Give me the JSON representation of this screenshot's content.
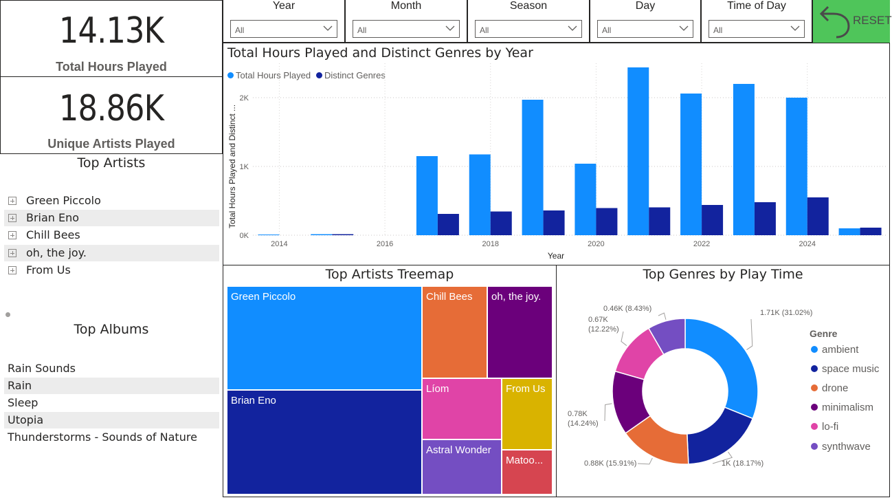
{
  "kpis": {
    "total_hours_value": "14.13K",
    "total_hours_label": "Total Hours Played",
    "unique_artists_value": "18.86K",
    "unique_artists_label": "Unique Artists Played"
  },
  "top_artists": {
    "title": "Top Artists",
    "items": [
      "Green Piccolo",
      "Brian Eno",
      "Chill Bees",
      "oh, the joy.",
      "From Us"
    ]
  },
  "top_albums": {
    "title": "Top Albums",
    "items": [
      "Rain Sounds",
      "Rain",
      "Sleep",
      "Utopia",
      "Thunderstorms - Sounds of Nature"
    ]
  },
  "slicers": [
    {
      "label": "Year",
      "value": "All"
    },
    {
      "label": "Month",
      "value": "All"
    },
    {
      "label": "Season",
      "value": "All"
    },
    {
      "label": "Day",
      "value": "All"
    },
    {
      "label": "Time of Day",
      "value": "All"
    }
  ],
  "reset_label": "RESET",
  "colors": {
    "light_blue": "#118dff",
    "dark_blue": "#12239e",
    "orange": "#e66c37",
    "purple_dark": "#6b007b",
    "pink": "#e044a7",
    "violet": "#744ec2",
    "yellow": "#d9b300",
    "red": "#d64550",
    "reset_green": "#4fc55a"
  },
  "chart_data": [
    {
      "type": "bar",
      "title": "Total Hours Played and Distinct Genres by Year",
      "xlabel": "Year",
      "ylabel": "Total Hours Played and Distinct ...",
      "x_ticks": [
        "2014",
        "2016",
        "2018",
        "2020",
        "2022",
        "2024"
      ],
      "y_ticks": [
        "0K",
        "1K",
        "2K"
      ],
      "ylim": [
        0,
        2500
      ],
      "categories": [
        2014,
        2015,
        2016,
        2017,
        2018,
        2019,
        2020,
        2021,
        2022,
        2023,
        2024,
        2025
      ],
      "series": [
        {
          "name": "Total Hours Played",
          "color": "#118dff",
          "values": [
            10,
            15,
            0,
            1150,
            1175,
            1970,
            1040,
            2440,
            2060,
            2200,
            2000,
            100
          ]
        },
        {
          "name": "Distinct Genres",
          "color": "#12239e",
          "values": [
            0,
            15,
            0,
            310,
            345,
            360,
            395,
            405,
            440,
            480,
            550,
            110
          ]
        }
      ],
      "legend": "top-left",
      "grid": true
    },
    {
      "type": "treemap",
      "title": "Top Artists Treemap",
      "items": [
        {
          "label": "Green Piccolo",
          "color": "#118dff"
        },
        {
          "label": "Brian Eno",
          "color": "#12239e"
        },
        {
          "label": "Chill Bees",
          "color": "#e66c37"
        },
        {
          "label": "oh, the joy.",
          "color": "#6b007b"
        },
        {
          "label": "Líom",
          "color": "#e044a7"
        },
        {
          "label": "From Us",
          "color": "#d9b300"
        },
        {
          "label": "Astral Wonder",
          "color": "#744ec2"
        },
        {
          "label": "Matoo...",
          "color": "#d64550"
        }
      ]
    },
    {
      "type": "pie",
      "title": "Top Genres by Play Time",
      "legend_title": "Genre",
      "slices": [
        {
          "name": "ambient",
          "value": 1710,
          "label": "1.71K (31.02%)",
          "color": "#118dff"
        },
        {
          "name": "space music",
          "value": 1000,
          "label": "1K (18.17%)",
          "color": "#12239e"
        },
        {
          "name": "drone",
          "value": 880,
          "label": "0.88K (15.91%)",
          "color": "#e66c37"
        },
        {
          "name": "minimalism",
          "value": 780,
          "label": "0.78K\n(14.24%)",
          "color": "#6b007b"
        },
        {
          "name": "lo-fi",
          "value": 670,
          "label": "0.67K\n(12.22%)",
          "color": "#e044a7"
        },
        {
          "name": "synthwave",
          "value": 460,
          "label": "0.46K (8.43%)",
          "color": "#744ec2"
        }
      ]
    }
  ]
}
